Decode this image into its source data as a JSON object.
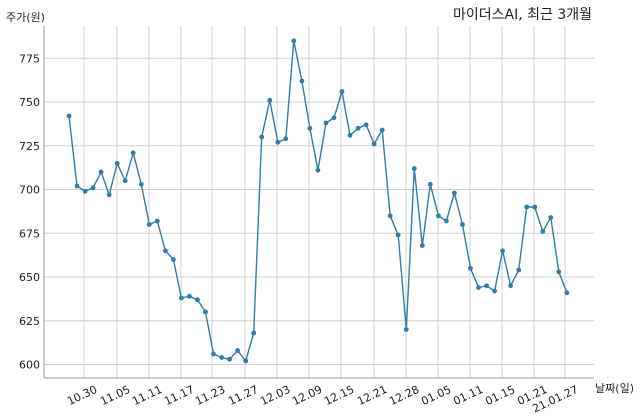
{
  "chart_data": {
    "type": "line",
    "title": "마이더스AI, 최근 3개월",
    "ylabel": "주가(원)",
    "xlabel": "날짜(일)",
    "ylim": [
      590,
      800
    ],
    "y_ticks": [
      600,
      625,
      650,
      675,
      700,
      725,
      750,
      775
    ],
    "x_tick_labels": [
      "10.30",
      "11.05",
      "11.11",
      "11.17",
      "11.23",
      "11.27",
      "12.03",
      "12.09",
      "12.15",
      "12.21",
      "12.28",
      "01.05",
      "01.11",
      "01.15",
      "01.21",
      "21.01.27"
    ],
    "grid": true,
    "line_color": "#2e7eaa",
    "series": [
      {
        "values": [
          742,
          702,
          699,
          701,
          710,
          697,
          715,
          705,
          721,
          703,
          680,
          682,
          665,
          660,
          638,
          639,
          637,
          630,
          606,
          604,
          603,
          608,
          602,
          618,
          730,
          751,
          727,
          729,
          785,
          762,
          735,
          711,
          738,
          741,
          756,
          731,
          735,
          737,
          726,
          734,
          685,
          674,
          620,
          712,
          668,
          703,
          685,
          682,
          698,
          680,
          655,
          644,
          645,
          642,
          665,
          645,
          654,
          690,
          690,
          676,
          684,
          653,
          641
        ]
      }
    ]
  }
}
